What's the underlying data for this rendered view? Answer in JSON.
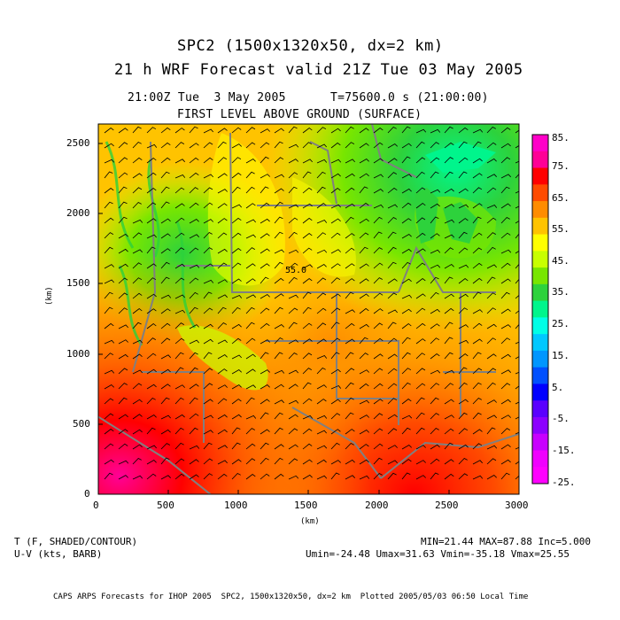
{
  "title": {
    "line1": "SPC2 (1500x1320x50, dx=2 km)",
    "line2": "21 h WRF Forecast valid 21Z Tue 03 May 2005"
  },
  "subtitle": {
    "time": "21:00Z Tue  3 May 2005",
    "seconds": "T=75600.0 s (21:00:00)",
    "level": "FIRST LEVEL ABOVE GROUND (SURFACE)"
  },
  "axes": {
    "xlabel": "(km)",
    "ylabel": "(km)",
    "xticks": [
      "0",
      "500",
      "1000",
      "1500",
      "2000",
      "2500",
      "3000"
    ],
    "yticks": [
      "0",
      "500",
      "1000",
      "1500",
      "2000",
      "2500"
    ]
  },
  "contour_label": "55.0",
  "colorbar": {
    "labels": [
      "85.",
      "75.",
      "65.",
      "55.",
      "45.",
      "35.",
      "25.",
      "15.",
      "5.",
      "-5.",
      "-15.",
      "-25."
    ],
    "colors": [
      "#ff00c8",
      "#ff0096",
      "#ff0000",
      "#ff4b00",
      "#ff8c00",
      "#ffc300",
      "#ffff00",
      "#c8ff00",
      "#78e600",
      "#2dd23c",
      "#00f58c",
      "#00ffe6",
      "#00c8ff",
      "#0096ff",
      "#0050ff",
      "#0000ff",
      "#5a00ff",
      "#8c00ff",
      "#c800ff",
      "#f000ff",
      "#ff00ff"
    ]
  },
  "footer": {
    "left1": "T (F, SHADED/CONTOUR)",
    "left2": "U-V (kts, BARB)",
    "right1": "MIN=21.44 MAX=87.88 Inc=5.000",
    "right2": "Umin=-24.48 Umax=31.63 Vmin=-35.18 Vmax=25.55",
    "credit": "CAPS ARPS Forecasts for IHOP 2005  SPC2, 1500x1320x50, dx=2 km  Plotted 2005/05/03 06:50 Local Time"
  }
}
